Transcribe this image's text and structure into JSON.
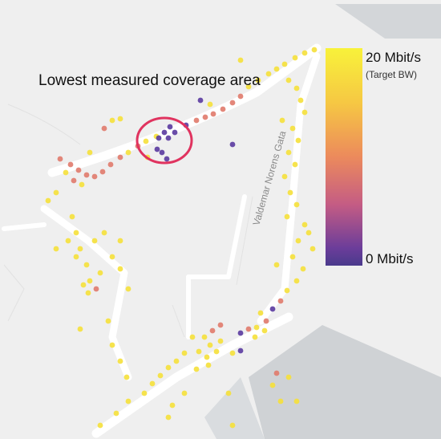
{
  "map": {
    "title": "Lowest measured coverage area",
    "street_label": "Valdemar Norens Gata",
    "legend": {
      "max_label": "20 Mbit/s",
      "max_note": "(Target BW)",
      "min_label": "0 Mbit/s",
      "gradient": [
        "#f8f23a",
        "#f6c843",
        "#ec8a5c",
        "#c45c84",
        "#6b3d9a",
        "#4a3a8c"
      ]
    },
    "highlight_color": "#e0335f",
    "colors": {
      "background": "#efefef",
      "road": "#ffffff",
      "building": "#d3d6d9",
      "low_throughput": "#5a3aa0",
      "mid_throughput": "#e07a6c",
      "high_throughput": "#f5e03a"
    }
  }
}
